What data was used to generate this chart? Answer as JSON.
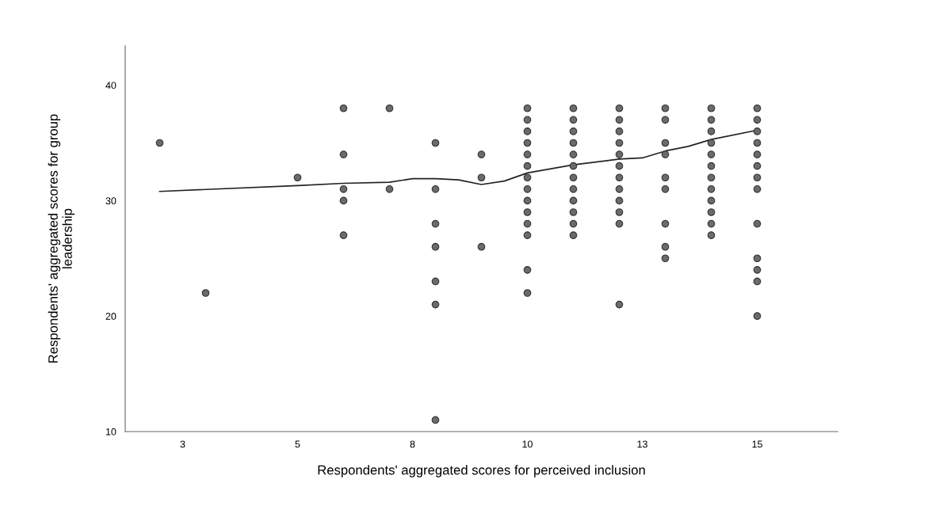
{
  "chart_data": {
    "type": "scatter",
    "xlabel": "Respondents' aggregated scores for perceived inclusion",
    "ylabel": "Respondents' aggregated scores for group\nleadership",
    "xlim": [
      1.25,
      16.75
    ],
    "ylim": [
      10,
      43.4
    ],
    "xticks": [
      {
        "value": 2.5,
        "label": "3"
      },
      5,
      {
        "value": 7.5,
        "label": "8"
      },
      10,
      {
        "value": 12.5,
        "label": "13"
      },
      15
    ],
    "yticks": [
      10,
      20,
      30,
      40
    ],
    "grid": false,
    "marker": "circle",
    "series": [
      {
        "color": "#6b6b6b",
        "x": [
          2,
          3,
          5,
          6,
          6,
          6,
          6,
          6,
          7,
          7,
          8,
          8,
          8,
          8,
          8,
          8,
          8,
          9,
          9,
          9,
          10,
          10,
          10,
          10,
          10,
          10,
          10,
          10,
          10,
          10,
          10,
          10,
          10,
          10,
          11,
          11,
          11,
          11,
          11,
          11,
          11,
          11,
          11,
          11,
          11,
          11,
          12,
          12,
          12,
          12,
          12,
          12,
          12,
          12,
          12,
          12,
          12,
          12,
          13,
          13,
          13,
          13,
          13,
          13,
          13,
          13,
          13,
          14,
          14,
          14,
          14,
          14,
          14,
          14,
          14,
          14,
          14,
          14,
          14,
          15,
          15,
          15,
          15,
          15,
          15,
          15,
          15,
          15,
          15,
          15,
          15,
          15
        ],
        "values": [
          35,
          22,
          32,
          38,
          34,
          31,
          30,
          27,
          38,
          31,
          35,
          31,
          28,
          26,
          23,
          21,
          11,
          34,
          32,
          26,
          38,
          37,
          36,
          35,
          34,
          33,
          32,
          31,
          30,
          29,
          28,
          27,
          24,
          22,
          38,
          37,
          36,
          35,
          34,
          33,
          32,
          31,
          30,
          29,
          28,
          27,
          38,
          37,
          36,
          35,
          34,
          33,
          32,
          31,
          30,
          29,
          28,
          21,
          38,
          37,
          35,
          34,
          32,
          31,
          28,
          26,
          25,
          38,
          37,
          36,
          35,
          34,
          33,
          32,
          31,
          30,
          29,
          28,
          27,
          38,
          37,
          36,
          35,
          34,
          33,
          32,
          31,
          28,
          25,
          24,
          23,
          20
        ]
      },
      {
        "type": "line",
        "color": "#222222",
        "marker": "none",
        "line_style": "solid",
        "x": [
          2,
          5,
          6,
          7,
          7.5,
          8,
          8.5,
          9,
          9.5,
          10,
          11,
          12,
          12.5,
          13,
          13.5,
          14,
          15
        ],
        "values": [
          30.8,
          31.3,
          31.5,
          31.6,
          31.9,
          31.9,
          31.8,
          31.4,
          31.7,
          32.4,
          33.1,
          33.6,
          33.7,
          34.3,
          34.7,
          35.3,
          36.1
        ]
      }
    ]
  }
}
